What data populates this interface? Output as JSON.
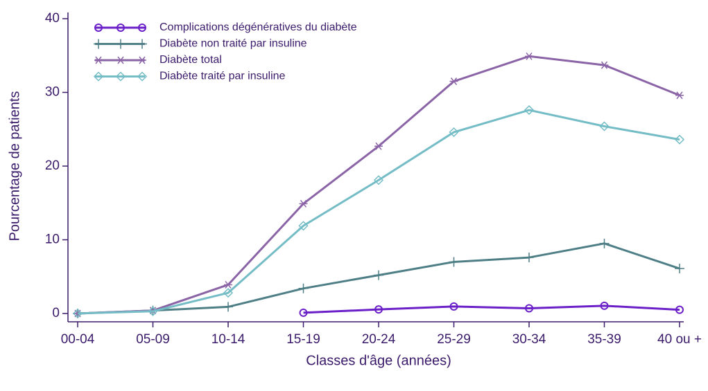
{
  "chart_data": {
    "type": "line",
    "x_label": "Classes d'âge (années)",
    "y_label": "Pourcentage de patients",
    "categories": [
      "00-04",
      "05-09",
      "10-14",
      "15-19",
      "20-24",
      "25-29",
      "30-34",
      "35-39",
      "40 ou +"
    ],
    "series": [
      {
        "name": "Complications dégénératives du diabète",
        "color": "#6a1fc8",
        "marker": "circle",
        "values": [
          null,
          null,
          null,
          0.1,
          0.55,
          0.95,
          0.7,
          1.05,
          0.5
        ]
      },
      {
        "name": "Diabète non traité par insuline",
        "color": "#4f7f86",
        "marker": "plus",
        "values": [
          0,
          0.4,
          0.9,
          3.4,
          5.2,
          7.0,
          7.6,
          9.5,
          6.1
        ]
      },
      {
        "name": "Diabète total",
        "color": "#8a64a6",
        "marker": "asterisk",
        "values": [
          0,
          0.4,
          3.9,
          14.9,
          22.7,
          31.5,
          34.9,
          33.7,
          29.6
        ]
      },
      {
        "name": "Diabète traité par insuline",
        "color": "#74bcc6",
        "marker": "diamond",
        "values": [
          0,
          0.3,
          2.8,
          11.9,
          18.1,
          24.6,
          27.6,
          25.4,
          23.6
        ]
      }
    ],
    "ylim": [
      0,
      40
    ],
    "yticks": [
      0,
      10,
      20,
      30,
      40
    ],
    "grid": false,
    "legend": "upper left"
  }
}
